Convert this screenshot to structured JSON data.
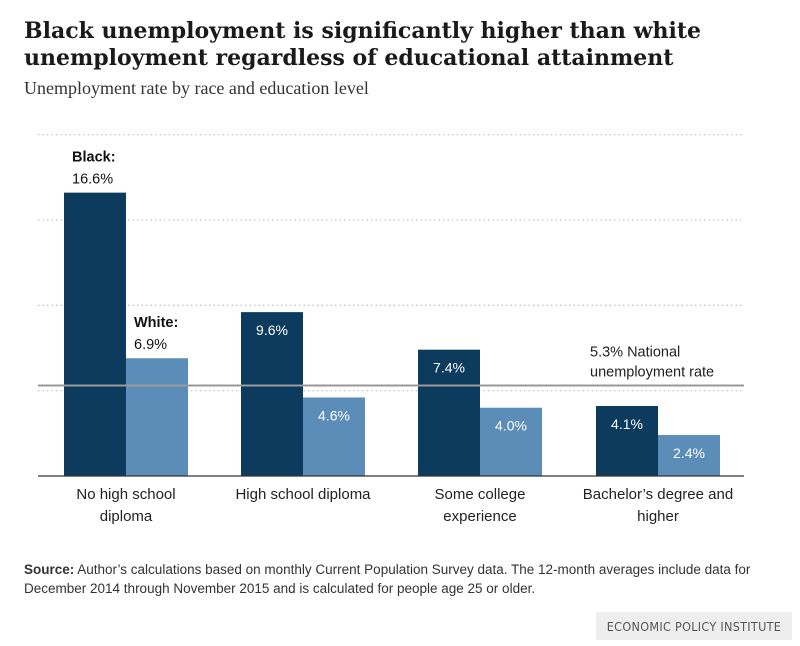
{
  "header": {
    "title": "Black unemployment is significantly higher than white unemployment regardless of educational attainment",
    "subtitle": "Unemployment rate by race and education level"
  },
  "chart_data": {
    "type": "bar",
    "categories": [
      [
        "No high school",
        "diploma"
      ],
      [
        "High school diploma"
      ],
      [
        "Some college",
        "experience"
      ],
      [
        "Bachelor’s degree and",
        "higher"
      ]
    ],
    "series": [
      {
        "name": "Black:",
        "values": [
          16.6,
          9.6,
          7.4,
          4.1
        ],
        "value_labels": [
          "16.6%",
          "9.6%",
          "7.4%",
          "4.1%"
        ],
        "color": "#0d3b5e"
      },
      {
        "name": "White:",
        "values": [
          6.9,
          4.6,
          4.0,
          2.4
        ],
        "value_labels": [
          "6.9%",
          "4.6%",
          "4.0%",
          "2.4%"
        ],
        "color": "#5b8db8"
      }
    ],
    "reference_line": {
      "value": 5.3,
      "label": [
        "5.3% National",
        "unemployment rate"
      ],
      "color": "#9a9a9a"
    },
    "ylim": [
      0,
      20
    ],
    "grid": "dotted",
    "legend": "inline labels above first category bars"
  },
  "footer": {
    "source_label": "Source:",
    "source_text": " Author’s calculations based on monthly Current Population Survey data. The 12-month averages include data for December 2014 through November 2015 and is calculated for people age 25 or older.",
    "brand": "ECONOMIC POLICY INSTITUTE"
  }
}
